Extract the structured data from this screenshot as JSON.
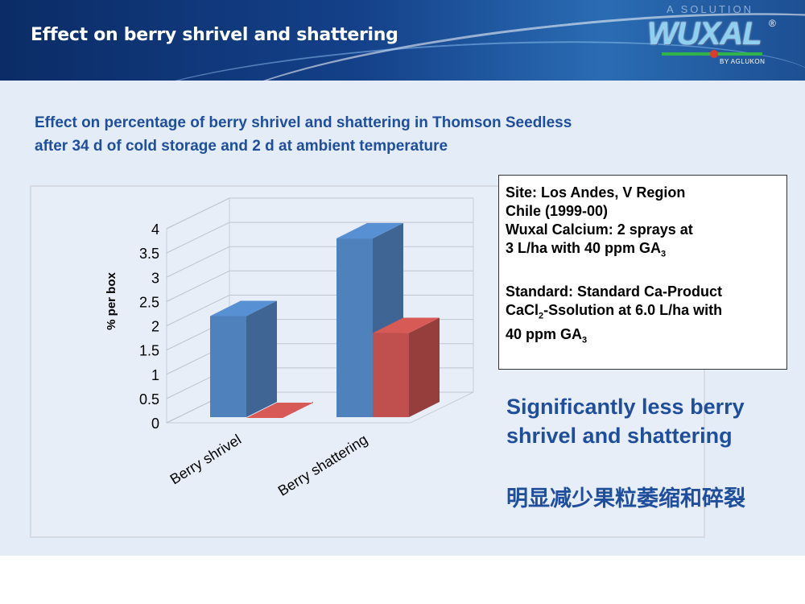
{
  "header": {
    "title": "Effect on berry shrivel and shattering",
    "logo": {
      "tagline": "A SOLUTION",
      "wordmark": "WUXAL",
      "registered": "®",
      "byline": "BY AGLUKON"
    }
  },
  "subtitle": {
    "line1": "Effect on percentage of berry shrivel and shattering in Thomson Seedless",
    "line2": "after 34 d of cold storage and 2 d at ambient temperature"
  },
  "info_box": {
    "line1": "Site: Los Andes, V Region",
    "line2": "Chile (1999-00)",
    "line3": "Wuxal Calcium: 2 sprays  at",
    "line4": "3 L/ha with 40 ppm GA",
    "line4_sub": "3",
    "line5": "Standard: Standard Ca-Product",
    "line6_pre": "CaCl",
    "line6_sub": "2",
    "line6_post": "-Ssolution at 6.0 L/ha with",
    "line7": "40 ppm GA",
    "line7_sub": "3"
  },
  "conclusion": {
    "en": "Significantly less berry shrivel and shattering",
    "cn": "明显减少果粒萎缩和碎裂"
  },
  "colors": {
    "series_blue": "#4f81bd",
    "series_red": "#c0504d",
    "accent_text": "#1f4e9c"
  },
  "chart_data": {
    "type": "bar",
    "style": "3d-clustered-column",
    "categories": [
      "Berry shrivel",
      "Berry shattering"
    ],
    "series": [
      {
        "values": [
          2.2,
          3.8
        ],
        "color": "#4f81bd"
      },
      {
        "values": [
          0.1,
          1.85
        ],
        "color": "#c0504d"
      }
    ],
    "ylabel": "% per box",
    "ylim": [
      0,
      4
    ],
    "yticks": [
      "0",
      "0.5",
      "1",
      "1.5",
      "2",
      "2.5",
      "3",
      "3.5",
      "4"
    ],
    "grid": true,
    "legend": "none"
  }
}
